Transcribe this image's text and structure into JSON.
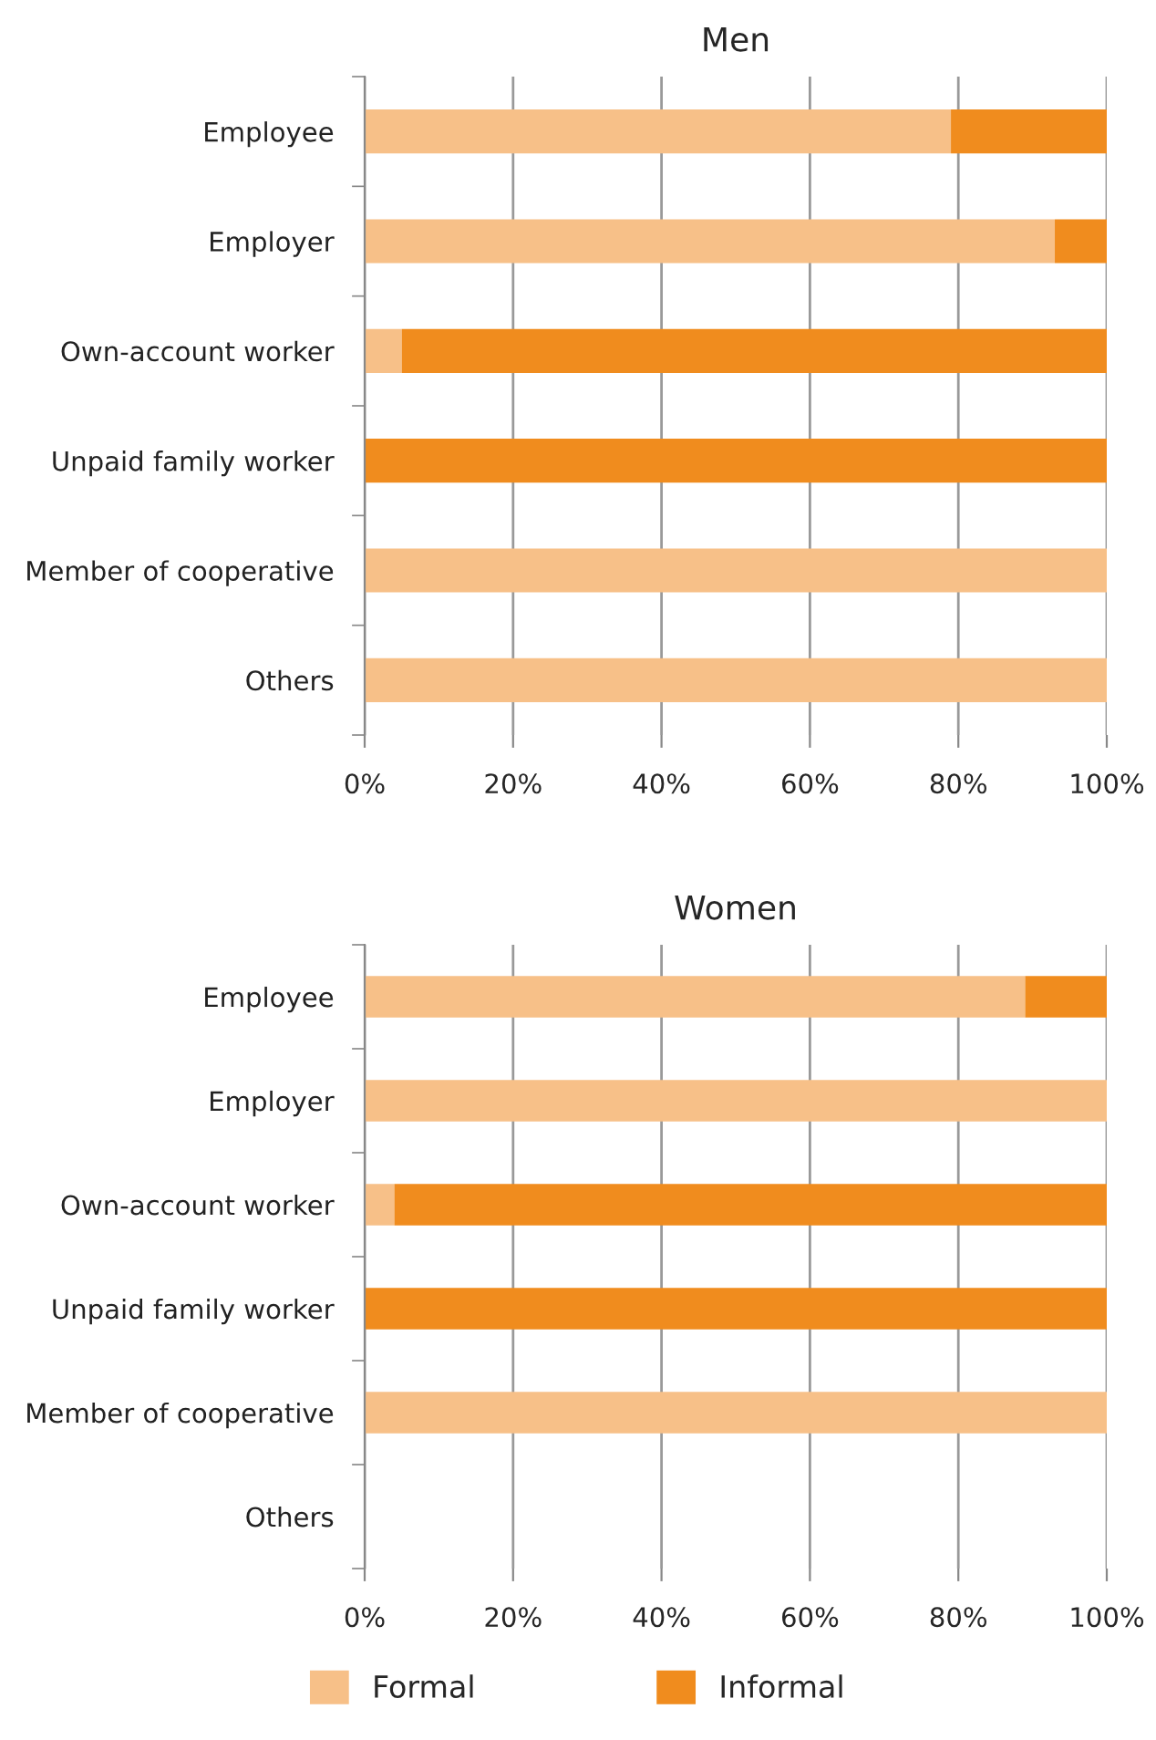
{
  "chart_data": [
    {
      "type": "bar",
      "title": "Men",
      "orientation": "horizontal",
      "stacked": true,
      "categories": [
        "Employee",
        "Employer",
        "Own-account worker",
        "Unpaid family worker",
        "Member of cooperative",
        "Others"
      ],
      "series": [
        {
          "color": "#f7c088",
          "values": [
            79,
            93,
            5,
            0,
            100,
            100
          ]
        },
        {
          "color": "#f08c1e",
          "values": [
            21,
            7,
            95,
            100,
            0,
            0
          ]
        }
      ],
      "xlim": [
        0,
        100
      ],
      "xticks": [
        {
          "value": 0,
          "label": "0%"
        },
        {
          "value": 20,
          "label": "20%"
        },
        {
          "value": 40,
          "label": "40%"
        },
        {
          "value": 60,
          "label": "60%"
        },
        {
          "value": 80,
          "label": "80%"
        },
        {
          "value": 100,
          "label": "100%"
        }
      ],
      "grid": "x",
      "legend": false
    },
    {
      "type": "bar",
      "title": "Women",
      "orientation": "horizontal",
      "stacked": true,
      "categories": [
        "Employee",
        "Employer",
        "Own-account worker",
        "Unpaid family worker",
        "Member of cooperative",
        "Others"
      ],
      "series": [
        {
          "name": "Formal",
          "color": "#f7c088",
          "values": [
            89,
            100,
            4,
            0,
            100,
            null
          ]
        },
        {
          "name": "Informal",
          "color": "#f08c1e",
          "values": [
            11,
            0,
            96,
            100,
            0,
            null
          ]
        }
      ],
      "xlim": [
        0,
        100
      ],
      "xticks": [
        {
          "value": 0,
          "label": "0%"
        },
        {
          "value": 20,
          "label": "20%"
        },
        {
          "value": 40,
          "label": "40%"
        },
        {
          "value": 60,
          "label": "60%"
        },
        {
          "value": 80,
          "label": "80%"
        },
        {
          "value": 100,
          "label": "100%"
        }
      ],
      "grid": "x",
      "legend": "bottom"
    }
  ]
}
